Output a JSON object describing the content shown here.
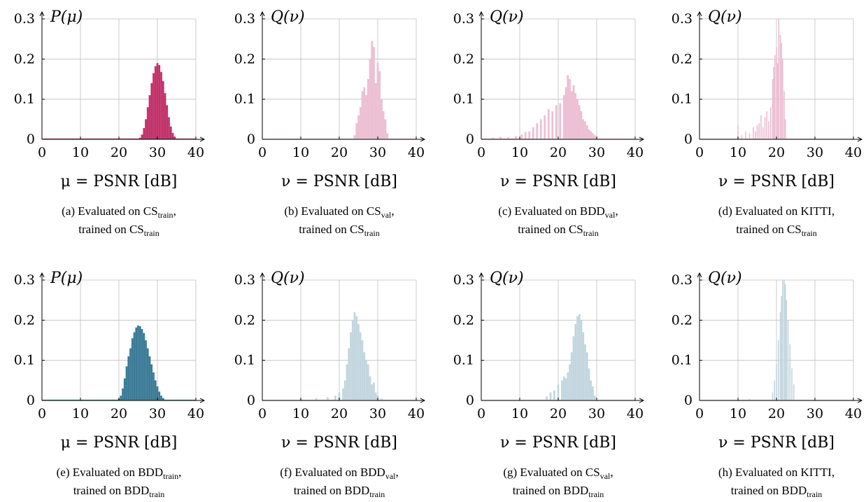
{
  "colors": {
    "cs": "#c2306a",
    "cs_light": "#ecbfd2",
    "bdd": "#3b7a96",
    "bdd_light": "#c3d6df",
    "grid": "#bfbfbf"
  },
  "chart_data": [
    {
      "type": "bar",
      "ylabel": "P(μ)",
      "xlabel": "μ = PSNR [dB]",
      "xlim": [
        0,
        40
      ],
      "ylim": [
        0,
        0.3
      ],
      "xticks": [
        0,
        10,
        20,
        30,
        40
      ],
      "yticks": [
        0,
        0.1,
        0.2,
        0.3
      ],
      "ytick_labels": [
        "0",
        "0.1",
        "0.2",
        "0.3"
      ],
      "color": "#c2306a",
      "caption": {
        "label": "(a) Evaluated on ",
        "d1": "CS",
        "s1": "train",
        "mid": ", trained on ",
        "d2": "CS",
        "s2": "train"
      },
      "series": [
        {
          "x": [
            25.5,
            26.0,
            26.5,
            27.0,
            27.5,
            28.0,
            28.5,
            29.0,
            29.5,
            30.0,
            30.5,
            31.0,
            31.5,
            32.0,
            32.5,
            33.0,
            33.5,
            34.0,
            34.5,
            35.0
          ],
          "y": [
            0.004,
            0.012,
            0.028,
            0.05,
            0.08,
            0.11,
            0.14,
            0.165,
            0.182,
            0.19,
            0.185,
            0.168,
            0.145,
            0.115,
            0.085,
            0.055,
            0.032,
            0.016,
            0.007,
            0.002
          ]
        }
      ]
    },
    {
      "type": "bar",
      "ylabel": "Q(ν)",
      "xlabel": "ν = PSNR [dB]",
      "xlim": [
        0,
        40
      ],
      "ylim": [
        0,
        0.3
      ],
      "xticks": [
        0,
        10,
        20,
        30,
        40
      ],
      "yticks": [
        0,
        0.1,
        0.2,
        0.3
      ],
      "ytick_labels": [
        "0",
        "0.1",
        "0.2",
        "0.3"
      ],
      "color": "#ecbfd2",
      "caption": {
        "label": "(b) Evaluated on ",
        "d1": "CS",
        "s1": "val",
        "mid": ", trained on ",
        "d2": "CS",
        "s2": "train"
      },
      "series": [
        {
          "x": [
            24.0,
            24.5,
            25.0,
            25.5,
            26.0,
            26.5,
            27.0,
            27.5,
            28.0,
            28.5,
            29.0,
            29.5,
            30.0,
            30.5,
            31.0,
            31.5,
            32.0,
            32.5
          ],
          "y": [
            0.01,
            0.04,
            0.06,
            0.08,
            0.12,
            0.13,
            0.11,
            0.15,
            0.2,
            0.245,
            0.23,
            0.14,
            0.19,
            0.17,
            0.1,
            0.07,
            0.05,
            0.015
          ]
        }
      ]
    },
    {
      "type": "bar",
      "ylabel": "Q(ν)",
      "xlabel": "ν = PSNR [dB]",
      "xlim": [
        0,
        40
      ],
      "ylim": [
        0,
        0.3
      ],
      "xticks": [
        0,
        10,
        20,
        30,
        40
      ],
      "yticks": [
        0,
        0.1,
        0.2,
        0.3
      ],
      "ytick_labels": [
        "0",
        "0.1",
        "0.2",
        "0.3"
      ],
      "color": "#ecbfd2",
      "caption": {
        "label": "(c) Evaluated on ",
        "d1": "BDD",
        "s1": "val",
        "mid": ", trained on ",
        "d2": "CS",
        "s2": "train"
      },
      "series": [
        {
          "x": [
            3.0,
            5.0,
            7.0,
            9.0,
            10.5,
            11.5,
            12.5,
            13.5,
            14.5,
            15.5,
            16.5,
            17.5,
            18.5,
            19.5,
            20.5,
            21.5,
            22.0,
            22.5,
            23.0,
            23.5,
            24.0,
            24.5,
            25.0,
            25.5,
            26.0,
            26.5,
            27.0,
            27.5,
            28.0,
            28.5,
            29.0,
            29.5,
            30.0
          ],
          "y": [
            0.004,
            0.006,
            0.005,
            0.008,
            0.012,
            0.018,
            0.02,
            0.03,
            0.04,
            0.05,
            0.06,
            0.075,
            0.07,
            0.085,
            0.09,
            0.11,
            0.13,
            0.16,
            0.15,
            0.12,
            0.135,
            0.115,
            0.1,
            0.085,
            0.07,
            0.05,
            0.045,
            0.035,
            0.025,
            0.02,
            0.015,
            0.01,
            0.006
          ]
        }
      ]
    },
    {
      "type": "bar",
      "ylabel": "Q(ν)",
      "xlabel": "ν = PSNR [dB]",
      "xlim": [
        0,
        40
      ],
      "ylim": [
        0,
        0.3
      ],
      "xticks": [
        0,
        10,
        20,
        30,
        40
      ],
      "yticks": [
        0,
        0.1,
        0.2,
        0.3
      ],
      "ytick_labels": [
        "0",
        "0.1",
        "0.2",
        "0.3"
      ],
      "color": "#ecbfd2",
      "caption": {
        "label": "(d) Evaluated on KITTI,",
        "d1": "",
        "s1": "",
        "mid": "trained on ",
        "d2": "CS",
        "s2": "train"
      },
      "series": [
        {
          "x": [
            10.0,
            11.0,
            12.0,
            13.0,
            14.0,
            14.5,
            15.0,
            15.5,
            16.0,
            16.5,
            17.0,
            17.5,
            18.0,
            18.5,
            19.0,
            19.3,
            19.6,
            20.0,
            20.3,
            20.6,
            21.0,
            21.3,
            21.6,
            22.0,
            22.3
          ],
          "y": [
            0.035,
            0.01,
            0.02,
            0.015,
            0.03,
            0.02,
            0.035,
            0.04,
            0.06,
            0.03,
            0.055,
            0.07,
            0.045,
            0.08,
            0.15,
            0.18,
            0.21,
            0.23,
            0.19,
            0.3,
            0.26,
            0.24,
            0.2,
            0.12,
            0.05
          ]
        }
      ]
    },
    {
      "type": "bar",
      "ylabel": "P(μ)",
      "xlabel": "μ = PSNR [dB]",
      "xlim": [
        0,
        40
      ],
      "ylim": [
        0,
        0.3
      ],
      "xticks": [
        0,
        10,
        20,
        30,
        40
      ],
      "yticks": [
        0,
        0.1,
        0.2,
        0.3
      ],
      "ytick_labels": [
        "0",
        "0.1",
        "0.2",
        "0.3"
      ],
      "color": "#3b7a96",
      "caption": {
        "label": "(e) Evaluated on ",
        "d1": "BDD",
        "s1": "train",
        "mid": ", trained on ",
        "d2": "BDD",
        "s2": "train"
      },
      "series": [
        {
          "x": [
            20.0,
            20.5,
            21.0,
            21.5,
            22.0,
            22.5,
            23.0,
            23.5,
            24.0,
            24.5,
            25.0,
            25.5,
            26.0,
            26.5,
            27.0,
            27.5,
            28.0,
            28.5,
            29.0,
            29.5,
            30.0,
            30.5,
            31.0,
            31.5,
            32.0
          ],
          "y": [
            0.004,
            0.012,
            0.03,
            0.055,
            0.085,
            0.11,
            0.13,
            0.155,
            0.17,
            0.182,
            0.187,
            0.185,
            0.178,
            0.168,
            0.15,
            0.13,
            0.11,
            0.09,
            0.07,
            0.05,
            0.035,
            0.022,
            0.012,
            0.006,
            0.002
          ]
        }
      ]
    },
    {
      "type": "bar",
      "ylabel": "Q(ν)",
      "xlabel": "ν = PSNR [dB]",
      "xlim": [
        0,
        40
      ],
      "ylim": [
        0,
        0.3
      ],
      "xticks": [
        0,
        10,
        20,
        30,
        40
      ],
      "yticks": [
        0,
        0.1,
        0.2,
        0.3
      ],
      "ytick_labels": [
        "0",
        "0.1",
        "0.2",
        "0.3"
      ],
      "color": "#c3d6df",
      "caption": {
        "label": "(f) Evaluated on ",
        "d1": "BDD",
        "s1": "val",
        "mid": ", trained on ",
        "d2": "BDD",
        "s2": "train"
      },
      "series": [
        {
          "x": [
            10.0,
            14.0,
            17.0,
            19.0,
            20.0,
            21.0,
            21.5,
            22.0,
            22.5,
            23.0,
            23.5,
            24.0,
            24.5,
            25.0,
            25.5,
            26.0,
            26.5,
            27.0,
            27.5,
            28.0,
            28.5,
            29.0,
            29.5,
            30.0,
            31.0
          ],
          "y": [
            0.004,
            0.006,
            0.008,
            0.012,
            0.02,
            0.03,
            0.05,
            0.09,
            0.13,
            0.17,
            0.2,
            0.22,
            0.21,
            0.19,
            0.17,
            0.15,
            0.12,
            0.1,
            0.09,
            0.06,
            0.04,
            0.045,
            0.02,
            0.012,
            0.005
          ]
        }
      ]
    },
    {
      "type": "bar",
      "ylabel": "Q(ν)",
      "xlabel": "ν = PSNR [dB]",
      "xlim": [
        0,
        40
      ],
      "ylim": [
        0,
        0.3
      ],
      "xticks": [
        0,
        10,
        20,
        30,
        40
      ],
      "yticks": [
        0,
        0.1,
        0.2,
        0.3
      ],
      "ytick_labels": [
        "0",
        "0.1",
        "0.2",
        "0.3"
      ],
      "color": "#c3d6df",
      "caption": {
        "label": "(g) Evaluated on ",
        "d1": "CS",
        "s1": "val",
        "mid": ", trained on ",
        "d2": "BDD",
        "s2": "train"
      },
      "series": [
        {
          "x": [
            17.0,
            18.0,
            19.0,
            20.0,
            21.0,
            21.5,
            22.0,
            22.5,
            23.0,
            23.5,
            24.0,
            24.5,
            25.0,
            25.5,
            26.0,
            26.5,
            27.0,
            27.5,
            28.0,
            28.5,
            29.0,
            29.5
          ],
          "y": [
            0.01,
            0.02,
            0.025,
            0.04,
            0.05,
            0.06,
            0.055,
            0.07,
            0.09,
            0.12,
            0.16,
            0.19,
            0.21,
            0.215,
            0.2,
            0.17,
            0.14,
            0.12,
            0.08,
            0.05,
            0.035,
            0.012
          ]
        }
      ]
    },
    {
      "type": "bar",
      "ylabel": "Q(ν)",
      "xlabel": "ν = PSNR [dB]",
      "xlim": [
        0,
        40
      ],
      "ylim": [
        0,
        0.3
      ],
      "xticks": [
        0,
        10,
        20,
        30,
        40
      ],
      "yticks": [
        0,
        0.1,
        0.2,
        0.3
      ],
      "ytick_labels": [
        "0",
        "0.1",
        "0.2",
        "0.3"
      ],
      "color": "#c3d6df",
      "caption": {
        "label": "(h) Evaluated on KITTI,",
        "d1": "",
        "s1": "",
        "mid": "trained on ",
        "d2": "BDD",
        "s2": "train"
      },
      "series": [
        {
          "x": [
            13.0,
            19.0,
            19.5,
            20.0,
            20.5,
            21.0,
            21.3,
            21.6,
            22.0,
            22.3,
            22.6,
            23.0,
            23.5,
            24.0,
            24.5
          ],
          "y": [
            0.004,
            0.02,
            0.05,
            0.09,
            0.15,
            0.22,
            0.26,
            0.3,
            0.3,
            0.29,
            0.25,
            0.2,
            0.14,
            0.08,
            0.04
          ]
        }
      ]
    }
  ]
}
